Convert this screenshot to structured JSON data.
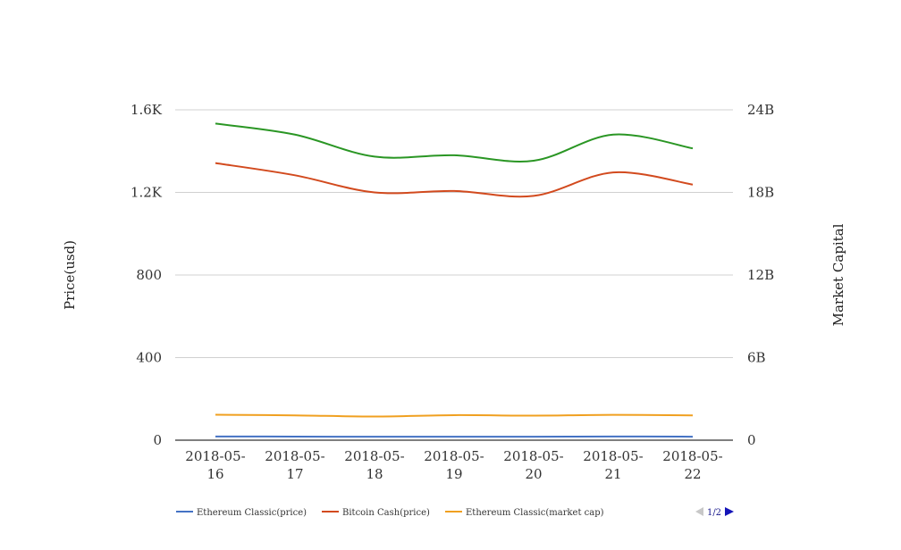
{
  "chart_data": {
    "type": "line",
    "categories": [
      [
        "2018-05-",
        "16"
      ],
      [
        "2018-05-",
        "17"
      ],
      [
        "2018-05-",
        "18"
      ],
      [
        "2018-05-",
        "19"
      ],
      [
        "2018-05-",
        "20"
      ],
      [
        "2018-05-",
        "21"
      ],
      [
        "2018-05-",
        "22"
      ]
    ],
    "y_left": {
      "label": "Price(usd)",
      "ylim": [
        0,
        1600
      ],
      "ticks": [
        0,
        400,
        800,
        1200,
        1600
      ],
      "tick_labels": [
        "0",
        "400",
        "800",
        "1.2K",
        "1.6K"
      ]
    },
    "y_right": {
      "label": "Market Capital",
      "ylim": [
        0,
        24000000000
      ],
      "ticks": [
        0,
        6000000000,
        12000000000,
        18000000000,
        24000000000
      ],
      "tick_labels": [
        "0",
        "6B",
        "12B",
        "18B",
        "24B"
      ]
    },
    "grid": true,
    "legend_position": "bottom",
    "series": [
      {
        "name": "Ethereum Classic(price)",
        "axis": "left",
        "color": "#4472c4",
        "values": [
          18,
          17.5,
          16.5,
          17,
          17,
          18,
          17
        ]
      },
      {
        "name": "Bitcoin Cash(price)",
        "axis": "left",
        "color": "#d24a1e",
        "values": [
          1342,
          1283,
          1200,
          1207,
          1183,
          1297,
          1238
        ]
      },
      {
        "name": "Ethereum Classic(market cap)",
        "axis": "right",
        "color": "#f0a020",
        "values": [
          1850000000,
          1800000000,
          1720000000,
          1820000000,
          1780000000,
          1840000000,
          1800000000
        ]
      },
      {
        "name": "",
        "axis": "right",
        "color": "#2a9624",
        "values": [
          23000000000,
          22200000000,
          20600000000,
          20700000000,
          20300000000,
          22200000000,
          21200000000
        ]
      }
    ],
    "legend": {
      "pager": "1/2",
      "prev_icon": "arrow-left-icon",
      "next_icon": "arrow-right-icon"
    }
  }
}
